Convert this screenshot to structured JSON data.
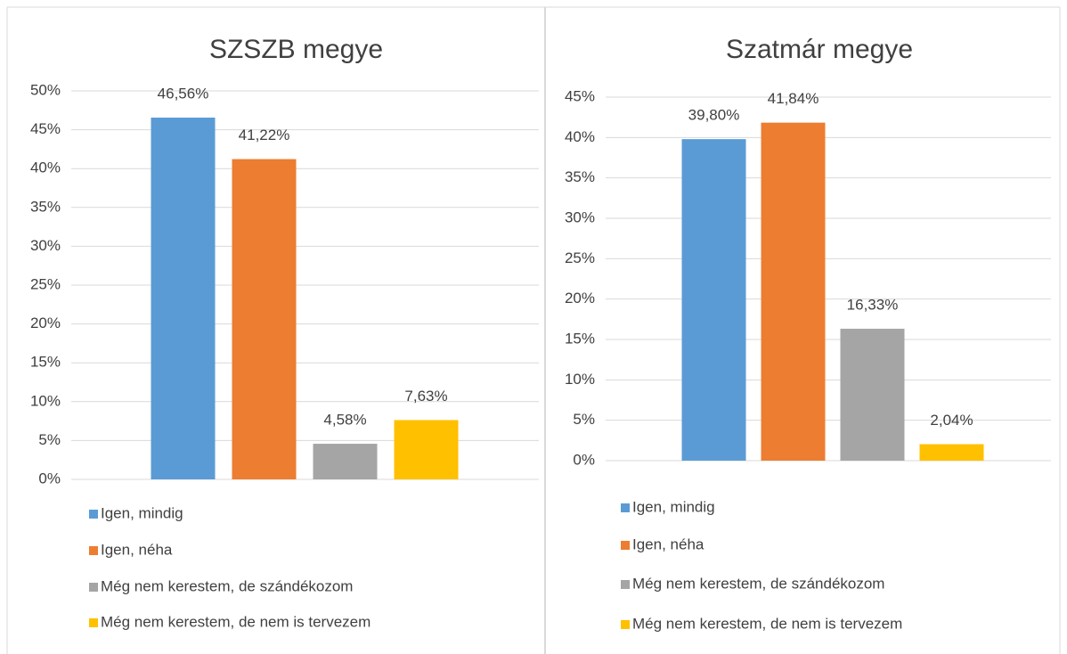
{
  "chart_data": [
    {
      "type": "bar",
      "title": "SZSZB megye",
      "categories": [
        "Igen, mindig",
        "Igen, néha",
        "Még nem kerestem, de szándékozom",
        "Még nem kerestem, de nem is tervezem"
      ],
      "values": [
        46.56,
        41.22,
        4.58,
        7.63
      ],
      "value_labels": [
        "46,56%",
        "41,22%",
        "4,58%",
        "7,63%"
      ],
      "colors": [
        "#5b9bd5",
        "#ed7d31",
        "#a5a5a5",
        "#ffc000"
      ],
      "ylim": [
        0,
        50
      ],
      "yticks": [
        {
          "value": 0,
          "label": "0%"
        },
        {
          "value": 5,
          "label": "5%"
        },
        {
          "value": 10,
          "label": "10%"
        },
        {
          "value": 15,
          "label": "15%"
        },
        {
          "value": 20,
          "label": "20%"
        },
        {
          "value": 25,
          "label": "25%"
        },
        {
          "value": 30,
          "label": "30%"
        },
        {
          "value": 35,
          "label": "35%"
        },
        {
          "value": 40,
          "label": "40%"
        },
        {
          "value": 45,
          "label": "45%"
        },
        {
          "value": 50,
          "label": "50%"
        }
      ],
      "grid": true,
      "legend": "bottom"
    },
    {
      "type": "bar",
      "title": "Szatmár megye",
      "categories": [
        "Igen, mindig",
        "Igen, néha",
        "Még nem kerestem, de szándékozom",
        "Még nem kerestem, de nem is tervezem"
      ],
      "values": [
        39.8,
        41.84,
        16.33,
        2.04
      ],
      "value_labels": [
        "39,80%",
        "41,84%",
        "16,33%",
        "2,04%"
      ],
      "colors": [
        "#5b9bd5",
        "#ed7d31",
        "#a5a5a5",
        "#ffc000"
      ],
      "ylim": [
        0,
        45
      ],
      "yticks": [
        {
          "value": 0,
          "label": "0%"
        },
        {
          "value": 5,
          "label": "5%"
        },
        {
          "value": 10,
          "label": "10%"
        },
        {
          "value": 15,
          "label": "15%"
        },
        {
          "value": 20,
          "label": "20%"
        },
        {
          "value": 25,
          "label": "25%"
        },
        {
          "value": 30,
          "label": "30%"
        },
        {
          "value": 35,
          "label": "35%"
        },
        {
          "value": 40,
          "label": "40%"
        },
        {
          "value": 45,
          "label": "45%"
        }
      ],
      "grid": true,
      "legend": "bottom"
    }
  ]
}
